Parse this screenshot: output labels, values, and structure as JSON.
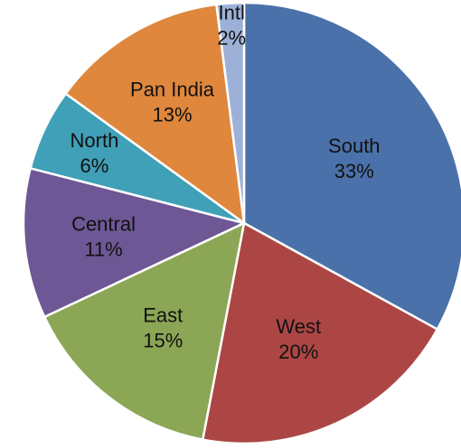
{
  "chart_data": {
    "type": "pie",
    "title": "",
    "start_angle_deg": 0,
    "direction": "clockwise",
    "legend": "none",
    "slices": [
      {
        "label": "South",
        "percent_label": "33%",
        "value": 33,
        "color": "#4A71A9"
      },
      {
        "label": "West",
        "percent_label": "20%",
        "value": 20,
        "color": "#AC4644"
      },
      {
        "label": "East",
        "percent_label": "15%",
        "value": 15,
        "color": "#8BA655"
      },
      {
        "label": "Central",
        "percent_label": "11%",
        "value": 11,
        "color": "#6E5795"
      },
      {
        "label": "North",
        "percent_label": "6%",
        "value": 6,
        "color": "#3FA0B7"
      },
      {
        "label": "Pan India",
        "percent_label": "13%",
        "value": 13,
        "color": "#DE873D"
      },
      {
        "label": "Intl",
        "percent_label": "2%",
        "value": 2,
        "color": "#9DB1D8"
      }
    ]
  }
}
